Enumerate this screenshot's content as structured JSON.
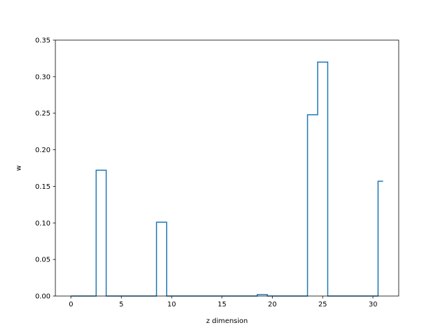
{
  "chart_data": {
    "type": "line",
    "style": "step-mid",
    "xlabel": "z dimension",
    "ylabel": "w",
    "xlim": [
      -1.55,
      32.55
    ],
    "ylim": [
      0.0,
      0.35
    ],
    "xticks": [
      0,
      5,
      10,
      15,
      20,
      25,
      30
    ],
    "xtick_labels": [
      "0",
      "5",
      "10",
      "15",
      "20",
      "25",
      "30"
    ],
    "yticks": [
      0.0,
      0.05,
      0.1,
      0.15,
      0.2,
      0.25,
      0.3,
      0.35
    ],
    "ytick_labels": [
      "0.00",
      "0.05",
      "0.10",
      "0.15",
      "0.20",
      "0.25",
      "0.30",
      "0.35"
    ],
    "grid": false,
    "series": [
      {
        "color": "#1f77b4",
        "x": [
          0,
          1,
          2,
          3,
          4,
          5,
          6,
          7,
          8,
          9,
          10,
          11,
          12,
          13,
          14,
          15,
          16,
          17,
          18,
          19,
          20,
          21,
          22,
          23,
          24,
          25,
          26,
          27,
          28,
          29,
          30,
          31
        ],
        "values": [
          0,
          0,
          0,
          0.172,
          0,
          0,
          0,
          0,
          0,
          0.101,
          0,
          0,
          0,
          0,
          0,
          0,
          0,
          0,
          0,
          0.002,
          0,
          0,
          0,
          0,
          0.248,
          0.32,
          0,
          0,
          0,
          0,
          0,
          0.157
        ]
      }
    ]
  }
}
